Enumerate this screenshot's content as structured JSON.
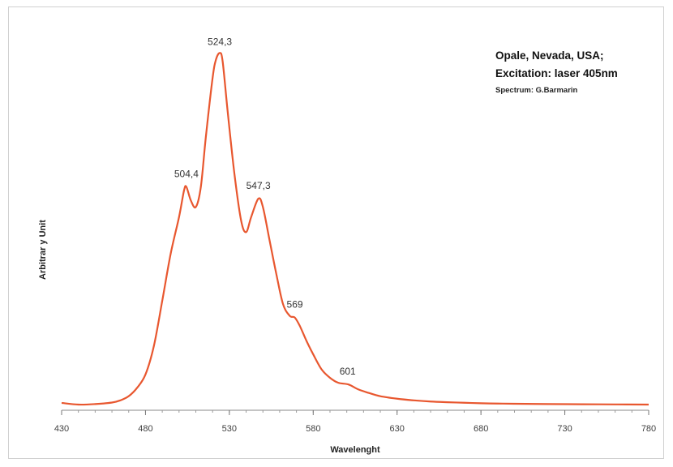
{
  "chart_data": {
    "type": "line",
    "title": "Opale, Nevada, USA;",
    "subtitle": "Excitation: laser 405nm",
    "credit": "Spectrum: G.Barmarin",
    "xlabel": "Wavelenght",
    "ylabel": "Arbitrar y Unit",
    "xlim": [
      430,
      780
    ],
    "x_ticks": [
      430,
      480,
      530,
      580,
      630,
      680,
      730,
      780
    ],
    "x_tick_labels": [
      "430",
      "480",
      "530",
      "580",
      "630",
      "680",
      "730",
      "780"
    ],
    "y_ticks_shown": false,
    "grid": false,
    "legend": "none",
    "line_color": "#e8572f",
    "series": [
      {
        "x": [
          430,
          440,
          450,
          460,
          465,
          470,
          475,
          480,
          485,
          490,
          495,
          500,
          503,
          504.4,
          507,
          510,
          513,
          516,
          520,
          522,
          524.3,
          526,
          529,
          533,
          537,
          540,
          543,
          547.3,
          550,
          554,
          558,
          562,
          566,
          569,
          572,
          576,
          580,
          585,
          590,
          595,
          601,
          607,
          613,
          620,
          630,
          640,
          650,
          660,
          670,
          680,
          690,
          700,
          720,
          740,
          760,
          780
        ],
        "y": [
          0.01,
          0.0,
          0.003,
          0.012,
          0.025,
          0.05,
          0.1,
          0.18,
          0.35,
          0.62,
          0.9,
          1.12,
          1.28,
          1.3,
          1.22,
          1.18,
          1.3,
          1.6,
          1.95,
          2.06,
          2.1,
          2.05,
          1.75,
          1.38,
          1.1,
          1.03,
          1.12,
          1.23,
          1.18,
          0.98,
          0.78,
          0.6,
          0.53,
          0.52,
          0.47,
          0.38,
          0.3,
          0.21,
          0.16,
          0.13,
          0.12,
          0.09,
          0.07,
          0.05,
          0.035,
          0.025,
          0.018,
          0.014,
          0.011,
          0.008,
          0.006,
          0.005,
          0.003,
          0.002,
          0.001,
          0.0
        ]
      }
    ],
    "peak_labels": [
      {
        "x": 504.4,
        "y": 1.3,
        "text": "504,4"
      },
      {
        "x": 524.3,
        "y": 2.1,
        "text": "524,3"
      },
      {
        "x": 547.3,
        "y": 1.23,
        "text": "547,3"
      },
      {
        "x": 569,
        "y": 0.52,
        "text": "569"
      },
      {
        "x": 601,
        "y": 0.12,
        "text": "601"
      }
    ]
  }
}
